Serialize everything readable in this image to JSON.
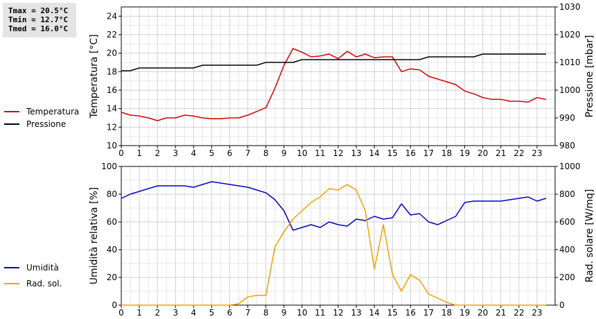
{
  "stats": {
    "tmax": "Tmax = 20.5°C",
    "tmin": "Tmin = 12.7°C",
    "tmed": "Tmed = 16.0°C"
  },
  "chart_data": [
    {
      "type": "line",
      "ylabel": "Temperatura [°C]",
      "y2label": "Pressione [mbar]",
      "xlim": [
        0,
        24
      ],
      "xticks": [
        "0",
        "1",
        "2",
        "3",
        "4",
        "5",
        "6",
        "7",
        "8",
        "9",
        "10",
        "11",
        "12",
        "13",
        "14",
        "15",
        "16",
        "17",
        "18",
        "19",
        "20",
        "21",
        "22",
        "23"
      ],
      "ylim": [
        10,
        25
      ],
      "yticks": [
        "10",
        "12",
        "14",
        "16",
        "18",
        "20",
        "22",
        "24"
      ],
      "y2lim": [
        980,
        1030
      ],
      "y2ticks": [
        "980",
        "990",
        "1000",
        "1010",
        "1020",
        "1030"
      ],
      "grid": true,
      "legend_position": "left",
      "series": [
        {
          "name": "Temperatura",
          "axis": "left",
          "color": "#d40000",
          "x": [
            0,
            0.5,
            1,
            1.5,
            2,
            2.5,
            3,
            3.5,
            4,
            4.5,
            5,
            5.5,
            6,
            6.5,
            7,
            7.5,
            8,
            8.5,
            9,
            9.5,
            10,
            10.5,
            11,
            11.5,
            12,
            12.5,
            13,
            13.5,
            14,
            14.5,
            15,
            15.5,
            16,
            16.5,
            17,
            17.5,
            18,
            18.5,
            19,
            19.5,
            20,
            20.5,
            21,
            21.5,
            22,
            22.5,
            23,
            23.5
          ],
          "y": [
            13.6,
            13.3,
            13.2,
            13.0,
            12.7,
            13.0,
            13.0,
            13.3,
            13.2,
            13.0,
            12.9,
            12.9,
            13.0,
            13.0,
            13.3,
            13.7,
            14.1,
            16.2,
            18.7,
            20.5,
            20.1,
            19.6,
            19.7,
            19.9,
            19.4,
            20.2,
            19.6,
            19.9,
            19.5,
            19.6,
            19.6,
            18.0,
            18.3,
            18.2,
            17.5,
            17.2,
            16.9,
            16.6,
            15.9,
            15.6,
            15.2,
            15.0,
            15.0,
            14.8,
            14.8,
            14.7,
            15.2,
            15.0
          ]
        },
        {
          "name": "Pressione",
          "axis": "right",
          "color": "#000000",
          "x": [
            0,
            0.5,
            1,
            2,
            3,
            4,
            4.5,
            5,
            6,
            7,
            7.5,
            8,
            9,
            9.5,
            10,
            11,
            12,
            13,
            14,
            15,
            16,
            16.5,
            17,
            18,
            19,
            19.5,
            20,
            21,
            22,
            23,
            23.5
          ],
          "y": [
            1007,
            1007,
            1008,
            1008,
            1008,
            1008,
            1009,
            1009,
            1009,
            1009,
            1009,
            1010,
            1010,
            1010,
            1011,
            1011,
            1011,
            1011,
            1011,
            1011,
            1011,
            1011,
            1012,
            1012,
            1012,
            1012,
            1013,
            1013,
            1013,
            1013,
            1013
          ]
        }
      ]
    },
    {
      "type": "line",
      "ylabel": "Umidità relativa [%]",
      "y2label": "Rad. solare [W/mq]",
      "xlim": [
        0,
        24
      ],
      "xticks": [
        "0",
        "1",
        "2",
        "3",
        "4",
        "5",
        "6",
        "7",
        "8",
        "9",
        "10",
        "11",
        "12",
        "13",
        "14",
        "15",
        "16",
        "17",
        "18",
        "19",
        "20",
        "21",
        "22",
        "23"
      ],
      "ylim": [
        0,
        100
      ],
      "yticks": [
        "0",
        "20",
        "40",
        "60",
        "80",
        "100"
      ],
      "y2lim": [
        0,
        1000
      ],
      "y2ticks": [
        "0",
        "200",
        "400",
        "600",
        "800",
        "1000"
      ],
      "grid": true,
      "legend_position": "left",
      "series": [
        {
          "name": "Umidità",
          "axis": "left",
          "color": "#0000c0",
          "x": [
            0,
            0.5,
            1,
            1.5,
            2,
            2.5,
            3,
            3.5,
            4,
            4.5,
            5,
            5.5,
            6,
            6.5,
            7,
            7.5,
            8,
            8.5,
            9,
            9.5,
            10,
            10.5,
            11,
            11.5,
            12,
            12.5,
            13,
            13.5,
            14,
            14.5,
            15,
            15.5,
            16,
            16.5,
            17,
            17.5,
            18,
            18.5,
            19,
            19.5,
            20,
            20.5,
            21,
            21.5,
            22,
            22.5,
            23,
            23.5
          ],
          "y": [
            77,
            80,
            82,
            84,
            86,
            86,
            86,
            86,
            85,
            87,
            89,
            88,
            87,
            86,
            85,
            83,
            81,
            76,
            68,
            54,
            56,
            58,
            56,
            60,
            58,
            57,
            62,
            61,
            64,
            62,
            63,
            73,
            65,
            66,
            60,
            58,
            61,
            64,
            74,
            75,
            75,
            75,
            75,
            76,
            77,
            78,
            75,
            77
          ]
        },
        {
          "name": "Rad. sol.",
          "axis": "right",
          "color": "#f0a000",
          "x": [
            0,
            1,
            2,
            3,
            4,
            5,
            6,
            6.5,
            7,
            7.5,
            8,
            8.5,
            9,
            9.5,
            10,
            10.5,
            11,
            11.5,
            12,
            12.5,
            13,
            13.5,
            14,
            14.5,
            15,
            15.5,
            16,
            16.5,
            17,
            17.5,
            18,
            18.5,
            19,
            20,
            21,
            22,
            23,
            23.5
          ],
          "y": [
            0,
            0,
            0,
            0,
            0,
            0,
            0,
            10,
            60,
            70,
            70,
            420,
            530,
            620,
            680,
            740,
            780,
            840,
            830,
            870,
            830,
            680,
            260,
            580,
            220,
            100,
            220,
            180,
            80,
            50,
            20,
            0,
            0,
            0,
            0,
            0,
            0,
            0
          ]
        }
      ]
    }
  ]
}
